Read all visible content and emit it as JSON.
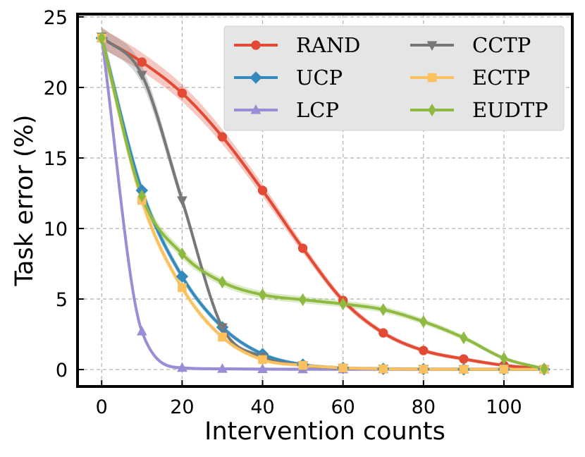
{
  "chart_data": {
    "type": "line",
    "title": "",
    "xlabel": "Intervention counts",
    "ylabel": "Task error (%)",
    "xlim": [
      -6,
      117
    ],
    "ylim": [
      -1.2,
      25.2
    ],
    "xticks": [
      0,
      20,
      40,
      60,
      80,
      100
    ],
    "yticks": [
      0,
      5,
      10,
      15,
      20,
      25
    ],
    "grid": true,
    "legend_position": "top-right",
    "x": [
      0,
      10,
      20,
      30,
      40,
      50,
      60,
      70,
      80,
      90,
      100,
      110
    ],
    "series": [
      {
        "name": "RAND",
        "color": "#e24a33",
        "marker": "circle",
        "values": [
          23.5,
          21.8,
          19.6,
          16.5,
          12.7,
          8.6,
          4.9,
          2.6,
          1.35,
          0.75,
          0.3,
          0.05
        ]
      },
      {
        "name": "UCP",
        "color": "#348abd",
        "marker": "diamond",
        "values": [
          23.5,
          12.7,
          6.6,
          3.0,
          1.1,
          0.35,
          0.12,
          0.05,
          0.03,
          0.02,
          0.02,
          0.02
        ]
      },
      {
        "name": "LCP",
        "color": "#988ed5",
        "marker": "triangle-up",
        "values": [
          23.5,
          2.7,
          0.12,
          0.05,
          0.03,
          0.02,
          0.02,
          0.02,
          0.02,
          0.02,
          0.02,
          0.02
        ]
      },
      {
        "name": "CCTP",
        "color": "#777777",
        "marker": "triangle-down",
        "values": [
          23.6,
          20.9,
          12.0,
          3.0,
          0.9,
          0.3,
          0.1,
          0.05,
          0.03,
          0.02,
          0.02,
          0.02
        ]
      },
      {
        "name": "ECTP",
        "color": "#fbc15e",
        "marker": "square",
        "values": [
          23.5,
          12.0,
          5.8,
          2.3,
          0.7,
          0.3,
          0.12,
          0.05,
          0.03,
          0.02,
          0.02,
          0.02
        ]
      },
      {
        "name": "EUDTP",
        "color": "#8eba42",
        "marker": "thin-diamond",
        "values": [
          23.5,
          12.3,
          8.2,
          6.2,
          5.3,
          4.95,
          4.65,
          4.25,
          3.4,
          2.25,
          0.8,
          0.05
        ]
      }
    ]
  }
}
